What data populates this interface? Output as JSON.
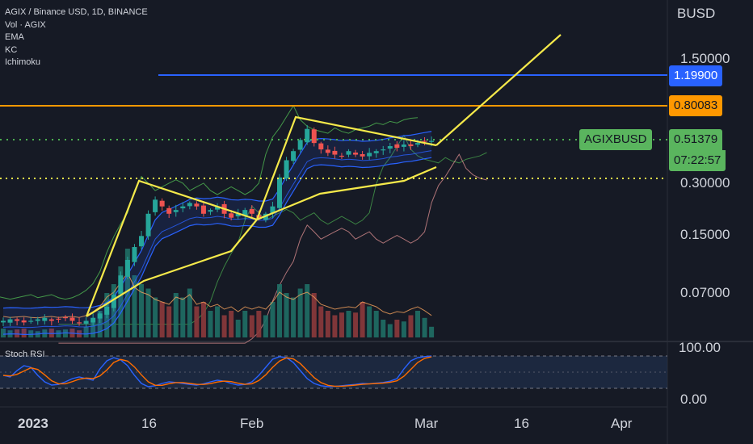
{
  "header": {
    "symbol_line": "AGIX / Binance USD, 1D, BINANCE",
    "indicators": [
      "Vol · AGIX",
      "EMA",
      "KC",
      "Ichimoku"
    ]
  },
  "colors": {
    "background": "#161a25",
    "up": "#26a69a",
    "down": "#ef5350",
    "drawing_yellow": "#f5e94a",
    "hline_blue": "#2962ff",
    "hline_orange": "#ff9800",
    "ichimoku_green": "#4caf50",
    "ichimoku_red": "#ef9a9a",
    "ema_blue": "#2962ff",
    "stoch_k": "#2962ff",
    "stoch_d": "#ff6d00"
  },
  "price_axis": {
    "currency": "BUSD",
    "ticks": [
      "1.50000",
      "0.30000",
      "0.15000",
      "0.07000"
    ]
  },
  "price_tags": {
    "blue_level": "1.19900",
    "orange_level": "0.80083",
    "symbol_tag": "AGIXBUSD",
    "last_price": "0.51379",
    "countdown": "07:22:57"
  },
  "stoch_panel": {
    "label": "Stoch RSI",
    "ticks": [
      "100.00",
      "0.00"
    ]
  },
  "time_axis": {
    "ticks": [
      "2023",
      "16",
      "Feb",
      "Mar",
      "16",
      "Apr"
    ]
  },
  "chart_data": {
    "type": "candlestick",
    "title": "AGIX / Binance USD, 1D, BINANCE",
    "scale": "log",
    "ylim": [
      0.05,
      2.4
    ],
    "horizontal_levels": [
      1.199,
      0.80083
    ],
    "dotted_levels": [
      0.51379,
      0.3
    ],
    "close_approx": [
      0.05,
      0.051,
      0.05,
      0.049,
      0.05,
      0.051,
      0.052,
      0.05,
      0.051,
      0.052,
      0.05,
      0.049,
      0.05,
      0.052,
      0.055,
      0.06,
      0.07,
      0.09,
      0.11,
      0.13,
      0.15,
      0.2,
      0.24,
      0.22,
      0.2,
      0.21,
      0.22,
      0.23,
      0.22,
      0.2,
      0.21,
      0.22,
      0.2,
      0.19,
      0.2,
      0.21,
      0.2,
      0.19,
      0.2,
      0.22,
      0.32,
      0.4,
      0.45,
      0.52,
      0.6,
      0.5,
      0.46,
      0.44,
      0.43,
      0.42,
      0.45,
      0.43,
      0.42,
      0.44,
      0.45,
      0.46,
      0.48,
      0.47,
      0.49,
      0.48,
      0.5,
      0.51,
      0.51379
    ],
    "stoch_rsi_k_approx": [
      40,
      35,
      55,
      70,
      65,
      40,
      20,
      10,
      12,
      20,
      30,
      35,
      30,
      25,
      60,
      85,
      95,
      88,
      70,
      40,
      15,
      5,
      8,
      15,
      20,
      18,
      15,
      12,
      10,
      14,
      20,
      25,
      22,
      15,
      10,
      12,
      20,
      40,
      65,
      90,
      98,
      95,
      80,
      55,
      30,
      15,
      8,
      5,
      6,
      8,
      10,
      12,
      15,
      14,
      16,
      18,
      22,
      30,
      60,
      85,
      95,
      98,
      100
    ],
    "volume_relative": [
      0.1,
      0.08,
      0.09,
      0.1,
      0.08,
      0.07,
      0.09,
      0.1,
      0.08,
      0.09,
      0.1,
      0.08,
      0.12,
      0.2,
      0.3,
      0.5,
      0.6,
      0.8,
      1.0,
      0.7,
      0.6,
      0.55,
      0.45,
      0.4,
      0.35,
      0.5,
      0.45,
      0.55,
      0.35,
      0.4,
      0.3,
      0.35,
      0.25,
      0.3,
      0.2,
      0.3,
      0.25,
      0.3,
      0.25,
      0.4,
      0.6,
      0.5,
      0.45,
      0.55,
      0.6,
      0.5,
      0.35,
      0.3,
      0.25,
      0.28,
      0.3,
      0.28,
      0.4,
      0.35,
      0.3,
      0.2,
      0.15,
      0.2,
      0.18,
      0.25,
      0.3,
      0.22,
      0.12
    ]
  }
}
